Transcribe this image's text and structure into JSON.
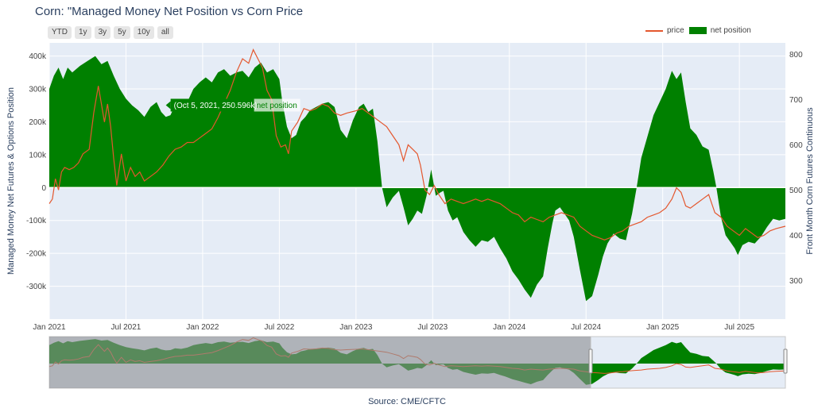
{
  "title": "Corn: \"Managed Money Net Position vs Corn Price",
  "range_buttons": [
    "YTD",
    "1y",
    "3y",
    "5y",
    "10y",
    "all"
  ],
  "legend": {
    "price": "price",
    "net": "net position"
  },
  "colors": {
    "price": "#e4572e",
    "net": "#008000",
    "plot_bg": "#e5ecf6",
    "mask": "#8e9093"
  },
  "y_left_label": "Managed Money Net Futures & Options Position",
  "y_right_label": "Front Month Corn Futures Continuous",
  "x_ticks": [
    "Jan 2021",
    "Jul 2021",
    "Jan 2022",
    "Jul 2022",
    "Jan 2023",
    "Jul 2023",
    "Jan 2024",
    "Jul 2024",
    "Jan 2025",
    "Jul 2025"
  ],
  "y_left_ticks": [
    "400k",
    "300k",
    "200k",
    "100k",
    "0",
    "-100k",
    "-200k",
    "-300k"
  ],
  "y_right_ticks": [
    "800",
    "700",
    "600",
    "500",
    "400",
    "300"
  ],
  "tooltip": {
    "point": "(Oct 5, 2021, 250.596k)",
    "series": "net position"
  },
  "source": "Source: CME/CFTC",
  "chart_data": {
    "type": "area",
    "x_unit": "year",
    "x_range": [
      2021.0,
      2025.8
    ],
    "y_left_range": [
      -400,
      440
    ],
    "y_right_range": [
      215,
      825
    ],
    "y_left_unit": "thousand contracts",
    "series": [
      {
        "name": "net position",
        "axis": "left",
        "type": "area",
        "points": [
          [
            2021.0,
            300
          ],
          [
            2021.03,
            340
          ],
          [
            2021.06,
            365
          ],
          [
            2021.09,
            330
          ],
          [
            2021.12,
            365
          ],
          [
            2021.15,
            350
          ],
          [
            2021.2,
            370
          ],
          [
            2021.25,
            385
          ],
          [
            2021.3,
            400
          ],
          [
            2021.34,
            375
          ],
          [
            2021.38,
            385
          ],
          [
            2021.42,
            340
          ],
          [
            2021.46,
            300
          ],
          [
            2021.5,
            270
          ],
          [
            2021.54,
            250
          ],
          [
            2021.58,
            235
          ],
          [
            2021.62,
            215
          ],
          [
            2021.66,
            245
          ],
          [
            2021.7,
            260
          ],
          [
            2021.73,
            230
          ],
          [
            2021.76,
            215
          ],
          [
            2021.79,
            220
          ],
          [
            2021.82,
            250
          ],
          [
            2021.86,
            240
          ],
          [
            2021.9,
            260
          ],
          [
            2021.94,
            300
          ],
          [
            2021.98,
            320
          ],
          [
            2022.02,
            335
          ],
          [
            2022.06,
            320
          ],
          [
            2022.1,
            350
          ],
          [
            2022.14,
            360
          ],
          [
            2022.18,
            340
          ],
          [
            2022.22,
            350
          ],
          [
            2022.26,
            355
          ],
          [
            2022.3,
            335
          ],
          [
            2022.34,
            365
          ],
          [
            2022.38,
            380
          ],
          [
            2022.42,
            350
          ],
          [
            2022.46,
            360
          ],
          [
            2022.5,
            330
          ],
          [
            2022.52,
            260
          ],
          [
            2022.55,
            185
          ],
          [
            2022.58,
            150
          ],
          [
            2022.61,
            160
          ],
          [
            2022.64,
            200
          ],
          [
            2022.67,
            215
          ],
          [
            2022.7,
            235
          ],
          [
            2022.74,
            245
          ],
          [
            2022.78,
            255
          ],
          [
            2022.82,
            260
          ],
          [
            2022.86,
            245
          ],
          [
            2022.9,
            175
          ],
          [
            2022.94,
            150
          ],
          [
            2022.98,
            205
          ],
          [
            2023.02,
            245
          ],
          [
            2023.05,
            255
          ],
          [
            2023.08,
            230
          ],
          [
            2023.11,
            240
          ],
          [
            2023.14,
            140
          ],
          [
            2023.17,
            0
          ],
          [
            2023.2,
            -60
          ],
          [
            2023.24,
            -30
          ],
          [
            2023.28,
            -10
          ],
          [
            2023.31,
            -60
          ],
          [
            2023.34,
            -115
          ],
          [
            2023.37,
            -95
          ],
          [
            2023.4,
            -70
          ],
          [
            2023.43,
            -80
          ],
          [
            2023.46,
            -25
          ],
          [
            2023.49,
            55
          ],
          [
            2023.52,
            -25
          ],
          [
            2023.55,
            -15
          ],
          [
            2023.57,
            -10
          ],
          [
            2023.6,
            -70
          ],
          [
            2023.63,
            -100
          ],
          [
            2023.66,
            -90
          ],
          [
            2023.7,
            -135
          ],
          [
            2023.74,
            -160
          ],
          [
            2023.78,
            -180
          ],
          [
            2023.82,
            -160
          ],
          [
            2023.86,
            -165
          ],
          [
            2023.9,
            -150
          ],
          [
            2023.94,
            -185
          ],
          [
            2023.98,
            -215
          ],
          [
            2024.02,
            -255
          ],
          [
            2024.06,
            -280
          ],
          [
            2024.1,
            -310
          ],
          [
            2024.14,
            -335
          ],
          [
            2024.18,
            -295
          ],
          [
            2024.22,
            -270
          ],
          [
            2024.25,
            -185
          ],
          [
            2024.28,
            -110
          ],
          [
            2024.3,
            -70
          ],
          [
            2024.33,
            -60
          ],
          [
            2024.36,
            -80
          ],
          [
            2024.39,
            -100
          ],
          [
            2024.42,
            -150
          ],
          [
            2024.46,
            -250
          ],
          [
            2024.5,
            -345
          ],
          [
            2024.54,
            -330
          ],
          [
            2024.58,
            -265
          ],
          [
            2024.61,
            -210
          ],
          [
            2024.64,
            -170
          ],
          [
            2024.68,
            -140
          ],
          [
            2024.72,
            -155
          ],
          [
            2024.76,
            -160
          ],
          [
            2024.8,
            -80
          ],
          [
            2024.83,
            0
          ],
          [
            2024.86,
            90
          ],
          [
            2024.9,
            155
          ],
          [
            2024.94,
            220
          ],
          [
            2024.98,
            260
          ],
          [
            2025.02,
            300
          ],
          [
            2025.06,
            355
          ],
          [
            2025.09,
            330
          ],
          [
            2025.12,
            350
          ],
          [
            2025.15,
            260
          ],
          [
            2025.18,
            180
          ],
          [
            2025.22,
            160
          ],
          [
            2025.26,
            125
          ],
          [
            2025.3,
            115
          ],
          [
            2025.33,
            50
          ],
          [
            2025.35,
            0
          ],
          [
            2025.38,
            -90
          ],
          [
            2025.41,
            -145
          ],
          [
            2025.44,
            -165
          ],
          [
            2025.47,
            -185
          ],
          [
            2025.49,
            -205
          ],
          [
            2025.52,
            -175
          ],
          [
            2025.56,
            -165
          ],
          [
            2025.6,
            -170
          ],
          [
            2025.64,
            -150
          ],
          [
            2025.68,
            -120
          ],
          [
            2025.72,
            -95
          ],
          [
            2025.76,
            -100
          ],
          [
            2025.8,
            -95
          ]
        ]
      },
      {
        "name": "price",
        "axis": "right",
        "type": "line",
        "points": [
          [
            2021.0,
            470
          ],
          [
            2021.02,
            480
          ],
          [
            2021.04,
            525
          ],
          [
            2021.06,
            500
          ],
          [
            2021.08,
            540
          ],
          [
            2021.1,
            550
          ],
          [
            2021.13,
            545
          ],
          [
            2021.16,
            550
          ],
          [
            2021.19,
            560
          ],
          [
            2021.22,
            580
          ],
          [
            2021.26,
            590
          ],
          [
            2021.29,
            670
          ],
          [
            2021.32,
            730
          ],
          [
            2021.34,
            690
          ],
          [
            2021.36,
            650
          ],
          [
            2021.38,
            690
          ],
          [
            2021.4,
            640
          ],
          [
            2021.42,
            570
          ],
          [
            2021.44,
            510
          ],
          [
            2021.47,
            580
          ],
          [
            2021.5,
            520
          ],
          [
            2021.53,
            550
          ],
          [
            2021.56,
            530
          ],
          [
            2021.59,
            540
          ],
          [
            2021.62,
            520
          ],
          [
            2021.66,
            530
          ],
          [
            2021.7,
            540
          ],
          [
            2021.74,
            555
          ],
          [
            2021.78,
            575
          ],
          [
            2021.82,
            590
          ],
          [
            2021.86,
            595
          ],
          [
            2021.9,
            605
          ],
          [
            2021.94,
            605
          ],
          [
            2021.98,
            615
          ],
          [
            2022.02,
            625
          ],
          [
            2022.06,
            635
          ],
          [
            2022.1,
            660
          ],
          [
            2022.14,
            690
          ],
          [
            2022.18,
            720
          ],
          [
            2022.22,
            760
          ],
          [
            2022.26,
            790
          ],
          [
            2022.3,
            780
          ],
          [
            2022.33,
            810
          ],
          [
            2022.36,
            790
          ],
          [
            2022.39,
            770
          ],
          [
            2022.42,
            720
          ],
          [
            2022.45,
            700
          ],
          [
            2022.48,
            620
          ],
          [
            2022.51,
            595
          ],
          [
            2022.54,
            600
          ],
          [
            2022.56,
            580
          ],
          [
            2022.58,
            630
          ],
          [
            2022.62,
            650
          ],
          [
            2022.66,
            680
          ],
          [
            2022.7,
            675
          ],
          [
            2022.74,
            680
          ],
          [
            2022.78,
            690
          ],
          [
            2022.82,
            685
          ],
          [
            2022.86,
            670
          ],
          [
            2022.9,
            665
          ],
          [
            2022.94,
            670
          ],
          [
            2023.0,
            675
          ],
          [
            2023.04,
            680
          ],
          [
            2023.08,
            670
          ],
          [
            2023.12,
            660
          ],
          [
            2023.16,
            650
          ],
          [
            2023.2,
            640
          ],
          [
            2023.24,
            620
          ],
          [
            2023.28,
            600
          ],
          [
            2023.31,
            565
          ],
          [
            2023.34,
            600
          ],
          [
            2023.37,
            590
          ],
          [
            2023.4,
            580
          ],
          [
            2023.42,
            555
          ],
          [
            2023.45,
            500
          ],
          [
            2023.48,
            490
          ],
          [
            2023.51,
            510
          ],
          [
            2023.54,
            490
          ],
          [
            2023.58,
            470
          ],
          [
            2023.62,
            480
          ],
          [
            2023.66,
            475
          ],
          [
            2023.7,
            470
          ],
          [
            2023.74,
            475
          ],
          [
            2023.78,
            480
          ],
          [
            2023.82,
            475
          ],
          [
            2023.86,
            480
          ],
          [
            2023.9,
            475
          ],
          [
            2023.94,
            470
          ],
          [
            2023.98,
            460
          ],
          [
            2024.02,
            450
          ],
          [
            2024.06,
            445
          ],
          [
            2024.1,
            430
          ],
          [
            2024.14,
            440
          ],
          [
            2024.18,
            435
          ],
          [
            2024.22,
            430
          ],
          [
            2024.26,
            440
          ],
          [
            2024.3,
            445
          ],
          [
            2024.34,
            450
          ],
          [
            2024.38,
            445
          ],
          [
            2024.42,
            440
          ],
          [
            2024.46,
            420
          ],
          [
            2024.5,
            410
          ],
          [
            2024.54,
            400
          ],
          [
            2024.58,
            395
          ],
          [
            2024.62,
            390
          ],
          [
            2024.66,
            395
          ],
          [
            2024.7,
            405
          ],
          [
            2024.74,
            410
          ],
          [
            2024.78,
            420
          ],
          [
            2024.82,
            425
          ],
          [
            2024.86,
            430
          ],
          [
            2024.9,
            440
          ],
          [
            2024.94,
            445
          ],
          [
            2024.98,
            450
          ],
          [
            2025.02,
            460
          ],
          [
            2025.06,
            480
          ],
          [
            2025.09,
            505
          ],
          [
            2025.12,
            495
          ],
          [
            2025.15,
            465
          ],
          [
            2025.18,
            460
          ],
          [
            2025.22,
            470
          ],
          [
            2025.26,
            480
          ],
          [
            2025.3,
            490
          ],
          [
            2025.34,
            450
          ],
          [
            2025.38,
            440
          ],
          [
            2025.42,
            420
          ],
          [
            2025.46,
            410
          ],
          [
            2025.5,
            400
          ],
          [
            2025.54,
            415
          ],
          [
            2025.58,
            405
          ],
          [
            2025.62,
            395
          ],
          [
            2025.66,
            400
          ],
          [
            2025.7,
            410
          ],
          [
            2025.74,
            415
          ],
          [
            2025.8,
            420
          ]
        ]
      }
    ]
  }
}
